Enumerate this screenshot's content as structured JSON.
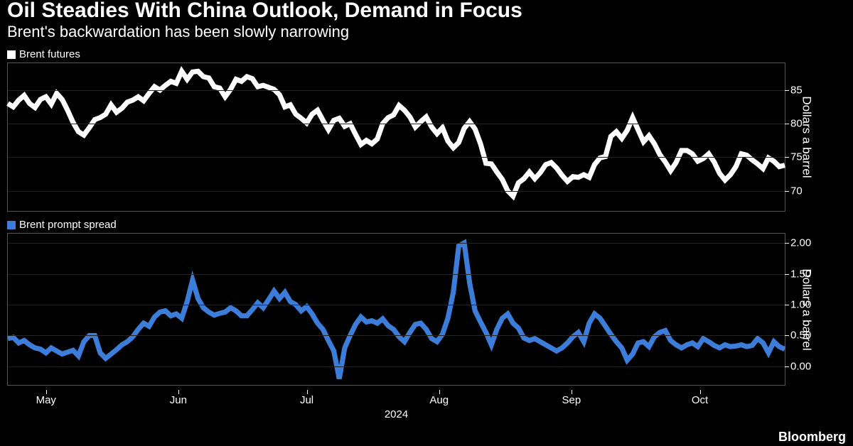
{
  "title": "Oil Steadies With China Outlook, Demand in Focus",
  "subtitle": "Brent's backwardation has been slowly narrowing",
  "background_color": "#000000",
  "text_color": "#ffffff",
  "grid_color": "#222222",
  "border_color": "#555555",
  "x_axis": {
    "ticks": [
      {
        "pos_pct": 5.0,
        "label": "May"
      },
      {
        "pos_pct": 22.0,
        "label": "Jun"
      },
      {
        "pos_pct": 38.5,
        "label": "Jul"
      },
      {
        "pos_pct": 55.5,
        "label": "Aug"
      },
      {
        "pos_pct": 72.5,
        "label": "Sep"
      },
      {
        "pos_pct": 89.0,
        "label": "Oct"
      }
    ],
    "year_label": "2024"
  },
  "top_chart": {
    "type": "line",
    "legend_label": "Brent futures",
    "legend_color": "#ffffff",
    "line_color": "#ffffff",
    "line_width": 1.5,
    "y_axis_title": "Dollars a barrel",
    "ylim": [
      67,
      89
    ],
    "yticks": [
      70,
      75,
      80,
      85
    ],
    "values": [
      83.0,
      82.5,
      83.5,
      84.2,
      83.0,
      82.4,
      83.6,
      84.0,
      82.9,
      84.5,
      83.6,
      82.0,
      80.2,
      78.8,
      78.3,
      79.4,
      80.6,
      80.9,
      81.4,
      82.8,
      81.7,
      82.3,
      83.2,
      83.5,
      84.0,
      83.4,
      84.5,
      85.5,
      85.0,
      85.7,
      86.3,
      86.0,
      87.8,
      86.6,
      87.7,
      87.8,
      87.0,
      86.8,
      85.5,
      85.3,
      84.0,
      85.1,
      86.6,
      86.3,
      87.0,
      86.7,
      85.5,
      85.7,
      85.4,
      85.1,
      84.3,
      82.5,
      82.8,
      81.4,
      80.8,
      80.1,
      81.4,
      82.0,
      80.5,
      79.1,
      80.5,
      80.8,
      79.6,
      80.0,
      78.4,
      76.9,
      77.5,
      77.0,
      77.7,
      80.0,
      80.9,
      81.3,
      82.7,
      82.0,
      81.0,
      79.5,
      80.3,
      81.0,
      79.5,
      78.5,
      79.4,
      77.4,
      76.4,
      77.2,
      79.3,
      80.3,
      79.2,
      77.0,
      74.1,
      74.0,
      72.8,
      71.7,
      70.0,
      69.2,
      71.2,
      71.8,
      72.8,
      71.8,
      72.7,
      73.9,
      74.2,
      73.4,
      72.3,
      71.4,
      72.1,
      72.0,
      72.4,
      72.0,
      73.9,
      74.9,
      75.1,
      78.1,
      78.8,
      77.8,
      79.0,
      80.9,
      79.1,
      77.3,
      78.2,
      77.0,
      75.4,
      74.3,
      73.0,
      74.2,
      76.0,
      76.0,
      75.5,
      74.4,
      74.8,
      75.5,
      74.3,
      72.6,
      71.6,
      72.4,
      73.6,
      75.5,
      75.3,
      74.6,
      74.0,
      73.3,
      74.9,
      74.4,
      73.6,
      73.8
    ]
  },
  "bottom_chart": {
    "type": "line",
    "legend_label": "Brent prompt spread",
    "legend_color": "#3b7dd8",
    "line_color": "#3b7dd8",
    "line_width": 1.5,
    "y_axis_title": "Dollars a barrel",
    "ylim": [
      -0.3,
      2.15
    ],
    "yticks": [
      0.0,
      0.5,
      1.0,
      1.5,
      2.0
    ],
    "ytick_decimals": 2,
    "values": [
      0.45,
      0.47,
      0.38,
      0.42,
      0.35,
      0.3,
      0.28,
      0.22,
      0.3,
      0.25,
      0.2,
      0.23,
      0.26,
      0.17,
      0.4,
      0.5,
      0.5,
      0.22,
      0.13,
      0.2,
      0.27,
      0.35,
      0.4,
      0.48,
      0.6,
      0.7,
      0.65,
      0.8,
      0.88,
      0.9,
      0.82,
      0.85,
      0.78,
      1.05,
      1.4,
      1.1,
      0.95,
      0.88,
      0.83,
      0.86,
      0.88,
      0.95,
      0.9,
      0.82,
      0.82,
      0.92,
      1.03,
      0.95,
      1.08,
      1.22,
      1.1,
      1.2,
      1.05,
      1.0,
      0.9,
      0.97,
      0.85,
      0.7,
      0.6,
      0.42,
      0.25,
      -0.2,
      0.3,
      0.5,
      0.68,
      0.8,
      0.72,
      0.74,
      0.7,
      0.77,
      0.66,
      0.6,
      0.48,
      0.4,
      0.55,
      0.68,
      0.7,
      0.6,
      0.45,
      0.4,
      0.52,
      0.78,
      1.2,
      1.95,
      2.0,
      1.35,
      0.9,
      0.72,
      0.55,
      0.35,
      0.6,
      0.78,
      0.85,
      0.7,
      0.62,
      0.46,
      0.42,
      0.45,
      0.4,
      0.35,
      0.3,
      0.25,
      0.3,
      0.38,
      0.48,
      0.55,
      0.4,
      0.7,
      0.85,
      0.78,
      0.65,
      0.52,
      0.4,
      0.3,
      0.1,
      0.2,
      0.38,
      0.4,
      0.32,
      0.48,
      0.55,
      0.58,
      0.42,
      0.35,
      0.3,
      0.35,
      0.38,
      0.32,
      0.45,
      0.4,
      0.34,
      0.3,
      0.35,
      0.32,
      0.33,
      0.35,
      0.32,
      0.34,
      0.45,
      0.38,
      0.22,
      0.4,
      0.32,
      0.28
    ]
  },
  "source_label": "Bloomberg"
}
